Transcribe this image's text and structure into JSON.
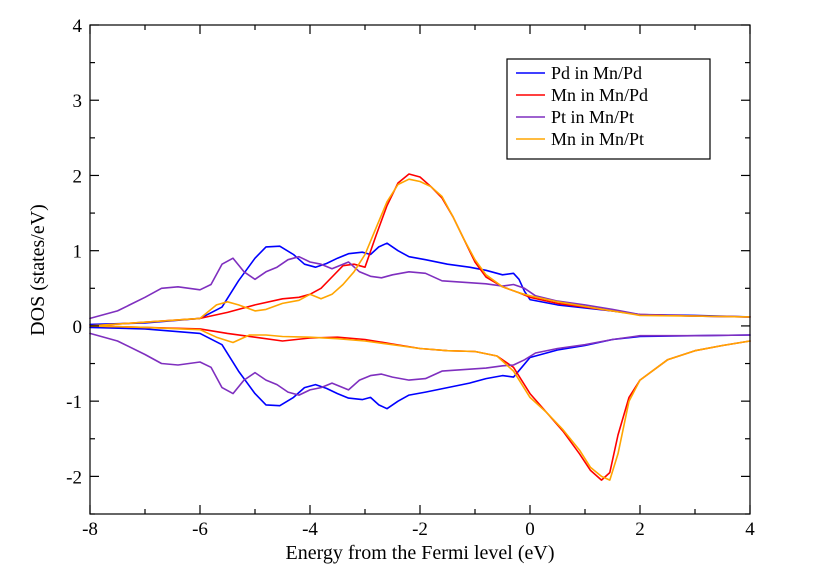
{
  "chart_data": {
    "type": "line",
    "title": "",
    "xlabel": "Energy from the Fermi level (eV)",
    "ylabel": "DOS (states/eV)",
    "xlim": [
      -8,
      4
    ],
    "ylim": [
      -2.5,
      4
    ],
    "xticks": [
      -8,
      -6,
      -4,
      -2,
      0,
      2,
      4
    ],
    "xtick_labels": [
      "-8",
      "-6",
      "-4",
      "-2",
      "0",
      "2",
      "4"
    ],
    "yticks": [
      -2,
      -1,
      0,
      1,
      2,
      3,
      4
    ],
    "ytick_labels": [
      "-2",
      "-1",
      "0",
      "1",
      "2",
      "3",
      "4"
    ],
    "grid": false,
    "legend_position": "top-right",
    "series": [
      {
        "name": "Pd in Mn/Pd",
        "color": "#0000ff",
        "points": [
          [
            -8,
            0.02
          ],
          [
            -7,
            0.04
          ],
          [
            -6,
            0.1
          ],
          [
            -5.6,
            0.25
          ],
          [
            -5.3,
            0.6
          ],
          [
            -5,
            0.9
          ],
          [
            -4.8,
            1.05
          ],
          [
            -4.55,
            1.06
          ],
          [
            -4.3,
            0.95
          ],
          [
            -4.1,
            0.82
          ],
          [
            -3.9,
            0.78
          ],
          [
            -3.7,
            0.83
          ],
          [
            -3.5,
            0.9
          ],
          [
            -3.3,
            0.96
          ],
          [
            -3.05,
            0.98
          ],
          [
            -2.9,
            0.95
          ],
          [
            -2.75,
            1.05
          ],
          [
            -2.6,
            1.1
          ],
          [
            -2.4,
            1.0
          ],
          [
            -2.2,
            0.92
          ],
          [
            -1.9,
            0.88
          ],
          [
            -1.5,
            0.82
          ],
          [
            -1.1,
            0.78
          ],
          [
            -0.8,
            0.74
          ],
          [
            -0.5,
            0.68
          ],
          [
            -0.3,
            0.7
          ],
          [
            -0.2,
            0.62
          ],
          [
            -0.1,
            0.46
          ],
          [
            0,
            0.35
          ],
          [
            0.5,
            0.28
          ],
          [
            1,
            0.24
          ],
          [
            1.5,
            0.2
          ],
          [
            2,
            0.15
          ],
          [
            3,
            0.14
          ],
          [
            4,
            0.12
          ],
          null,
          [
            -8,
            -0.02
          ],
          [
            -7,
            -0.04
          ],
          [
            -6,
            -0.1
          ],
          [
            -5.6,
            -0.25
          ],
          [
            -5.3,
            -0.6
          ],
          [
            -5,
            -0.9
          ],
          [
            -4.8,
            -1.05
          ],
          [
            -4.55,
            -1.06
          ],
          [
            -4.3,
            -0.95
          ],
          [
            -4.1,
            -0.82
          ],
          [
            -3.9,
            -0.78
          ],
          [
            -3.7,
            -0.83
          ],
          [
            -3.5,
            -0.9
          ],
          [
            -3.3,
            -0.96
          ],
          [
            -3.05,
            -0.98
          ],
          [
            -2.9,
            -0.95
          ],
          [
            -2.75,
            -1.05
          ],
          [
            -2.6,
            -1.1
          ],
          [
            -2.4,
            -1.0
          ],
          [
            -2.2,
            -0.92
          ],
          [
            -1.9,
            -0.88
          ],
          [
            -1.5,
            -0.82
          ],
          [
            -1.1,
            -0.76
          ],
          [
            -0.8,
            -0.7
          ],
          [
            -0.5,
            -0.66
          ],
          [
            -0.3,
            -0.68
          ],
          [
            -0.15,
            -0.55
          ],
          [
            0,
            -0.42
          ],
          [
            0.5,
            -0.32
          ],
          [
            1,
            -0.26
          ],
          [
            1.5,
            -0.18
          ],
          [
            2,
            -0.14
          ],
          [
            3,
            -0.13
          ],
          [
            4,
            -0.12
          ]
        ]
      },
      {
        "name": "Mn in Mn/Pd",
        "color": "#ff0000",
        "points": [
          [
            -8,
            0.0
          ],
          [
            -7,
            0.05
          ],
          [
            -6,
            0.1
          ],
          [
            -5.5,
            0.18
          ],
          [
            -5,
            0.28
          ],
          [
            -4.5,
            0.36
          ],
          [
            -4.2,
            0.38
          ],
          [
            -4,
            0.42
          ],
          [
            -3.8,
            0.5
          ],
          [
            -3.6,
            0.65
          ],
          [
            -3.4,
            0.8
          ],
          [
            -3.2,
            0.82
          ],
          [
            -3,
            0.78
          ],
          [
            -2.8,
            1.2
          ],
          [
            -2.6,
            1.6
          ],
          [
            -2.4,
            1.9
          ],
          [
            -2.2,
            2.02
          ],
          [
            -2,
            1.98
          ],
          [
            -1.8,
            1.85
          ],
          [
            -1.6,
            1.7
          ],
          [
            -1.4,
            1.45
          ],
          [
            -1.2,
            1.15
          ],
          [
            -1,
            0.85
          ],
          [
            -0.8,
            0.65
          ],
          [
            -0.5,
            0.52
          ],
          [
            -0.2,
            0.44
          ],
          [
            0,
            0.38
          ],
          [
            0.5,
            0.3
          ],
          [
            1,
            0.25
          ],
          [
            1.5,
            0.2
          ],
          [
            2,
            0.15
          ],
          [
            3,
            0.13
          ],
          [
            4,
            0.12
          ],
          null,
          [
            -8,
            0.0
          ],
          [
            -7,
            -0.02
          ],
          [
            -6,
            -0.04
          ],
          [
            -5.5,
            -0.1
          ],
          [
            -5,
            -0.15
          ],
          [
            -4.5,
            -0.2
          ],
          [
            -4,
            -0.16
          ],
          [
            -3.5,
            -0.15
          ],
          [
            -3,
            -0.18
          ],
          [
            -2.5,
            -0.24
          ],
          [
            -2,
            -0.3
          ],
          [
            -1.5,
            -0.33
          ],
          [
            -1,
            -0.34
          ],
          [
            -0.6,
            -0.4
          ],
          [
            -0.3,
            -0.55
          ],
          [
            0,
            -0.9
          ],
          [
            0.3,
            -1.15
          ],
          [
            0.6,
            -1.4
          ],
          [
            0.9,
            -1.7
          ],
          [
            1.1,
            -1.92
          ],
          [
            1.3,
            -2.05
          ],
          [
            1.45,
            -1.95
          ],
          [
            1.6,
            -1.45
          ],
          [
            1.8,
            -0.95
          ],
          [
            2,
            -0.72
          ],
          [
            2.5,
            -0.45
          ],
          [
            3,
            -0.33
          ],
          [
            3.5,
            -0.26
          ],
          [
            4,
            -0.2
          ]
        ]
      },
      {
        "name": "Pt in Mn/Pt",
        "color": "#7f2fbf",
        "points": [
          [
            -8,
            0.1
          ],
          [
            -7.5,
            0.2
          ],
          [
            -7,
            0.38
          ],
          [
            -6.7,
            0.5
          ],
          [
            -6.4,
            0.52
          ],
          [
            -6,
            0.48
          ],
          [
            -5.8,
            0.55
          ],
          [
            -5.6,
            0.82
          ],
          [
            -5.4,
            0.9
          ],
          [
            -5.2,
            0.72
          ],
          [
            -5,
            0.62
          ],
          [
            -4.8,
            0.72
          ],
          [
            -4.6,
            0.78
          ],
          [
            -4.4,
            0.88
          ],
          [
            -4.2,
            0.92
          ],
          [
            -4,
            0.85
          ],
          [
            -3.8,
            0.82
          ],
          [
            -3.6,
            0.76
          ],
          [
            -3.3,
            0.85
          ],
          [
            -3.1,
            0.72
          ],
          [
            -2.9,
            0.66
          ],
          [
            -2.7,
            0.64
          ],
          [
            -2.5,
            0.68
          ],
          [
            -2.2,
            0.72
          ],
          [
            -1.9,
            0.7
          ],
          [
            -1.6,
            0.6
          ],
          [
            -1.2,
            0.58
          ],
          [
            -0.8,
            0.56
          ],
          [
            -0.5,
            0.53
          ],
          [
            -0.3,
            0.55
          ],
          [
            -0.1,
            0.5
          ],
          [
            0.1,
            0.4
          ],
          [
            0.5,
            0.33
          ],
          [
            1,
            0.28
          ],
          [
            1.5,
            0.22
          ],
          [
            2,
            0.15
          ],
          [
            3,
            0.13
          ],
          [
            4,
            0.12
          ],
          null,
          [
            -8,
            -0.1
          ],
          [
            -7.5,
            -0.2
          ],
          [
            -7,
            -0.38
          ],
          [
            -6.7,
            -0.5
          ],
          [
            -6.4,
            -0.52
          ],
          [
            -6,
            -0.48
          ],
          [
            -5.8,
            -0.55
          ],
          [
            -5.6,
            -0.82
          ],
          [
            -5.4,
            -0.9
          ],
          [
            -5.2,
            -0.72
          ],
          [
            -5,
            -0.62
          ],
          [
            -4.8,
            -0.72
          ],
          [
            -4.6,
            -0.78
          ],
          [
            -4.4,
            -0.88
          ],
          [
            -4.2,
            -0.92
          ],
          [
            -4,
            -0.85
          ],
          [
            -3.8,
            -0.82
          ],
          [
            -3.6,
            -0.76
          ],
          [
            -3.3,
            -0.85
          ],
          [
            -3.1,
            -0.72
          ],
          [
            -2.9,
            -0.66
          ],
          [
            -2.7,
            -0.64
          ],
          [
            -2.5,
            -0.68
          ],
          [
            -2.2,
            -0.72
          ],
          [
            -1.9,
            -0.7
          ],
          [
            -1.6,
            -0.6
          ],
          [
            -1.2,
            -0.58
          ],
          [
            -0.8,
            -0.56
          ],
          [
            -0.5,
            -0.53
          ],
          [
            -0.3,
            -0.52
          ],
          [
            -0.1,
            -0.45
          ],
          [
            0.1,
            -0.36
          ],
          [
            0.5,
            -0.3
          ],
          [
            1,
            -0.25
          ],
          [
            1.5,
            -0.18
          ],
          [
            2,
            -0.13
          ],
          [
            3,
            -0.13
          ],
          [
            4,
            -0.12
          ]
        ]
      },
      {
        "name": "Mn in Mn/Pt",
        "color": "#ffa500",
        "points": [
          [
            -8,
            0.0
          ],
          [
            -7,
            0.05
          ],
          [
            -6,
            0.1
          ],
          [
            -5.7,
            0.28
          ],
          [
            -5.5,
            0.32
          ],
          [
            -5.3,
            0.28
          ],
          [
            -5,
            0.2
          ],
          [
            -4.8,
            0.22
          ],
          [
            -4.5,
            0.3
          ],
          [
            -4.2,
            0.34
          ],
          [
            -4,
            0.42
          ],
          [
            -3.8,
            0.36
          ],
          [
            -3.6,
            0.42
          ],
          [
            -3.4,
            0.55
          ],
          [
            -3.2,
            0.72
          ],
          [
            -3,
            0.95
          ],
          [
            -2.8,
            1.3
          ],
          [
            -2.6,
            1.65
          ],
          [
            -2.4,
            1.88
          ],
          [
            -2.2,
            1.95
          ],
          [
            -2,
            1.92
          ],
          [
            -1.8,
            1.85
          ],
          [
            -1.6,
            1.72
          ],
          [
            -1.4,
            1.45
          ],
          [
            -1.2,
            1.15
          ],
          [
            -1,
            0.88
          ],
          [
            -0.8,
            0.68
          ],
          [
            -0.5,
            0.52
          ],
          [
            -0.2,
            0.44
          ],
          [
            0,
            0.4
          ],
          [
            0.5,
            0.32
          ],
          [
            1,
            0.26
          ],
          [
            1.5,
            0.2
          ],
          [
            2,
            0.14
          ],
          [
            3,
            0.13
          ],
          [
            4,
            0.12
          ],
          null,
          [
            -8,
            0.0
          ],
          [
            -7,
            -0.02
          ],
          [
            -6,
            -0.05
          ],
          [
            -5.7,
            -0.15
          ],
          [
            -5.4,
            -0.22
          ],
          [
            -5.1,
            -0.12
          ],
          [
            -4.8,
            -0.12
          ],
          [
            -4.5,
            -0.14
          ],
          [
            -4,
            -0.15
          ],
          [
            -3.5,
            -0.17
          ],
          [
            -3,
            -0.2
          ],
          [
            -2.5,
            -0.25
          ],
          [
            -2,
            -0.3
          ],
          [
            -1.5,
            -0.33
          ],
          [
            -1,
            -0.34
          ],
          [
            -0.6,
            -0.4
          ],
          [
            -0.3,
            -0.6
          ],
          [
            0,
            -0.95
          ],
          [
            0.3,
            -1.15
          ],
          [
            0.6,
            -1.38
          ],
          [
            0.9,
            -1.65
          ],
          [
            1.1,
            -1.88
          ],
          [
            1.3,
            -2.0
          ],
          [
            1.45,
            -2.05
          ],
          [
            1.6,
            -1.7
          ],
          [
            1.8,
            -1.0
          ],
          [
            2,
            -0.72
          ],
          [
            2.5,
            -0.45
          ],
          [
            3,
            -0.33
          ],
          [
            3.5,
            -0.26
          ],
          [
            4,
            -0.2
          ]
        ]
      }
    ]
  }
}
